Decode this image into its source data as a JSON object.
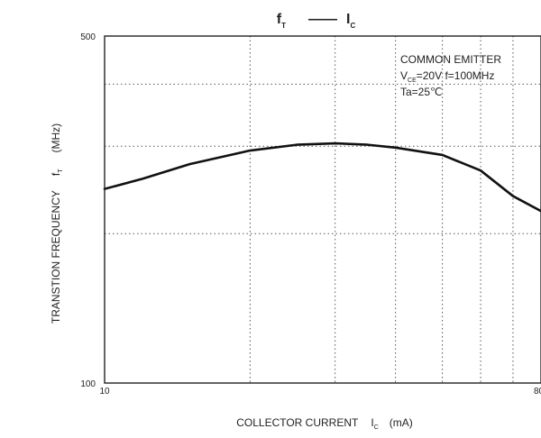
{
  "chart_data": {
    "type": "line",
    "title": {
      "left_main": "f",
      "left_sub": "T",
      "connector": "——",
      "right_main": "I",
      "right_sub": "C"
    },
    "xlabel": {
      "main": "COLLECTOR CURRENT",
      "symbol": "I",
      "symbol_sub": "C",
      "unit": "(mA)"
    },
    "ylabel": {
      "main": "TRANSTION FREQUENCY",
      "symbol": "f",
      "symbol_sub": "T",
      "unit": "(MHz)"
    },
    "x_scale": "log",
    "y_scale": "log",
    "xlim": [
      10,
      80
    ],
    "ylim": [
      100,
      500
    ],
    "x_tick_labels": [
      {
        "value": 10,
        "label": "10"
      },
      {
        "value": 80,
        "label": "80"
      }
    ],
    "y_tick_labels": [
      {
        "value": 100,
        "label": "100"
      },
      {
        "value": 500,
        "label": "500"
      }
    ],
    "x_gridlines": [
      20,
      30,
      40,
      50,
      60,
      70
    ],
    "y_gridlines": [
      200,
      300,
      400
    ],
    "grid": true,
    "annotation": {
      "line1": "COMMON EMITTER",
      "line2_main": "V",
      "line2_sub": "CE",
      "line2_rest": "=20V   f=100MHz",
      "line3": "Ta=25℃"
    },
    "series": [
      {
        "x": [
          10,
          12,
          15,
          20,
          25,
          30,
          35,
          40,
          50,
          60,
          70,
          80
        ],
        "y": [
          246,
          258,
          276,
          294,
          302,
          304,
          302,
          298,
          288,
          268,
          238,
          222
        ]
      }
    ],
    "colors": {
      "axis": "#222222",
      "grid": "#555555",
      "line": "#111111"
    }
  }
}
